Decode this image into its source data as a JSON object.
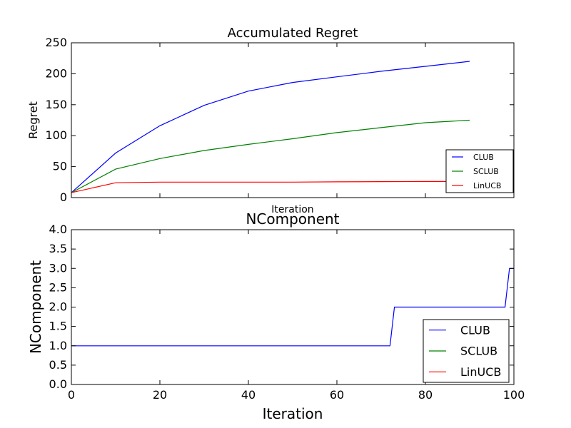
{
  "chart_data": [
    {
      "type": "line",
      "title": "Accumulated Regret",
      "xlabel": "Iteration",
      "ylabel": "Regret",
      "xlim": [
        0,
        100
      ],
      "ylim": [
        0,
        250
      ],
      "yticks": [
        "0",
        "50",
        "100",
        "150",
        "200",
        "250"
      ],
      "grid": false,
      "legend_position": "bottom-right",
      "series": [
        {
          "name": "CLUB",
          "color": "#0000ff",
          "x": [
            0,
            10,
            20,
            30,
            40,
            50,
            60,
            70,
            80,
            90
          ],
          "y": [
            8,
            72,
            116,
            149,
            172,
            186,
            195,
            204,
            212,
            220
          ]
        },
        {
          "name": "SCLUB",
          "color": "#008000",
          "x": [
            0,
            10,
            20,
            30,
            40,
            50,
            60,
            70,
            80,
            90
          ],
          "y": [
            8,
            46,
            63,
            76,
            86,
            95,
            105,
            113,
            121,
            125
          ]
        },
        {
          "name": "LinUCB",
          "color": "#ff0000",
          "x": [
            0,
            10,
            20,
            30,
            40,
            50,
            60,
            70,
            80,
            90
          ],
          "y": [
            8,
            24,
            25,
            25,
            25,
            25,
            25.5,
            25.8,
            26,
            26
          ]
        }
      ]
    },
    {
      "type": "line",
      "title": "NComponent",
      "xlabel": "Iteration",
      "ylabel": "NComponent",
      "xlim": [
        0,
        100
      ],
      "ylim": [
        0,
        4
      ],
      "xticks": [
        "0",
        "20",
        "40",
        "60",
        "80",
        "100"
      ],
      "yticks": [
        "0.0",
        "0.5",
        "1.0",
        "1.5",
        "2.0",
        "2.5",
        "3.0",
        "3.5",
        "4.0"
      ],
      "grid": false,
      "legend_position": "bottom-right",
      "series": [
        {
          "name": "CLUB",
          "color": "#0000ff",
          "x": [
            0,
            72,
            73,
            98,
            99,
            100
          ],
          "y": [
            1,
            1,
            2,
            2,
            3,
            3
          ]
        },
        {
          "name": "SCLUB",
          "color": "#008000",
          "x": [],
          "y": []
        },
        {
          "name": "LinUCB",
          "color": "#ff0000",
          "x": [],
          "y": []
        }
      ]
    }
  ]
}
